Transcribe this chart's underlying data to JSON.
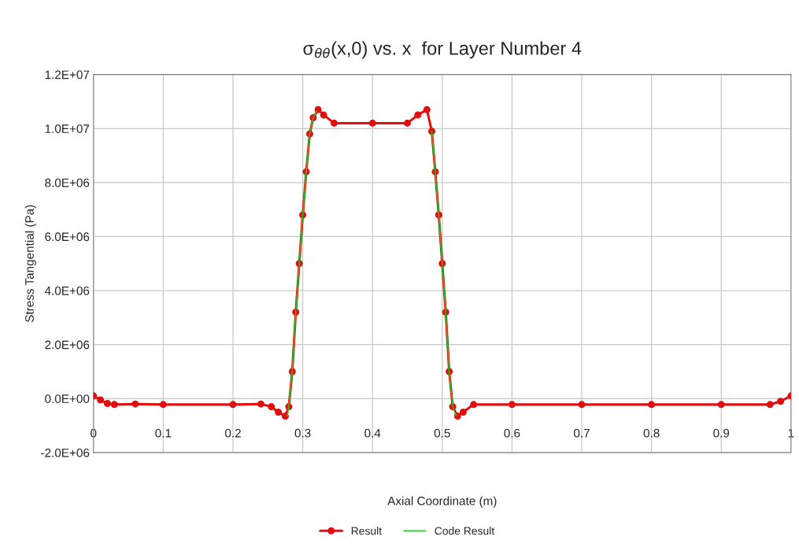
{
  "chart_data": {
    "type": "line",
    "title": "σ$_{θθ}$(x,0) vs. x  for Layer Number 4",
    "xlabel": "Axial Coordinate (m)",
    "ylabel": "Stress Tangential (Pa)",
    "xlim": [
      0,
      1
    ],
    "xticks": [
      0,
      0.1,
      0.2,
      0.3,
      0.4,
      0.5,
      0.6,
      0.7,
      0.8,
      0.9,
      1
    ],
    "ylim": [
      -2000000,
      12000000
    ],
    "yticks": [
      {
        "value": -2000000,
        "label": "-2.0E+06"
      },
      {
        "value": 0,
        "label": "0.0E+00"
      },
      {
        "value": 2000000,
        "label": "2.0E+06"
      },
      {
        "value": 4000000,
        "label": "4.0E+06"
      },
      {
        "value": 6000000,
        "label": "6.0E+06"
      },
      {
        "value": 8000000,
        "label": "8.0E+06"
      },
      {
        "value": 10000000,
        "label": "1.0E+07"
      },
      {
        "value": 12000000,
        "label": "1.2E+07"
      }
    ],
    "grid": true,
    "legend": "bottom",
    "series": [
      {
        "name": "Result",
        "color": "#e01010",
        "marker": "circle",
        "x": [
          0,
          0.01,
          0.02,
          0.03,
          0.06,
          0.1,
          0.2,
          0.24,
          0.255,
          0.265,
          0.275,
          0.28,
          0.285,
          0.29,
          0.295,
          0.3,
          0.305,
          0.31,
          0.315,
          0.322,
          0.33,
          0.345,
          0.4,
          0.45,
          0.465,
          0.478,
          0.485,
          0.49,
          0.495,
          0.5,
          0.505,
          0.51,
          0.515,
          0.522,
          0.53,
          0.545,
          0.6,
          0.7,
          0.8,
          0.9,
          0.97,
          0.985,
          1
        ],
        "values": [
          100000,
          -50000,
          -180000,
          -220000,
          -200000,
          -220000,
          -220000,
          -200000,
          -300000,
          -500000,
          -650000,
          -300000,
          1000000,
          3200000,
          5000000,
          6800000,
          8400000,
          9800000,
          10400000,
          10700000,
          10500000,
          10200000,
          10200000,
          10200000,
          10500000,
          10700000,
          9900000,
          8400000,
          6800000,
          5000000,
          3200000,
          1000000,
          -300000,
          -650000,
          -500000,
          -220000,
          -220000,
          -220000,
          -220000,
          -220000,
          -220000,
          -100000,
          100000
        ]
      },
      {
        "name": "Code Result",
        "color": "#22cc22",
        "marker": "none",
        "x": [
          0.278,
          0.28,
          0.285,
          0.29,
          0.295,
          0.3,
          0.305,
          0.31,
          0.315,
          0.32,
          0.48,
          0.485,
          0.49,
          0.495,
          0.5,
          0.505,
          0.51,
          0.515,
          0.52
        ],
        "values": [
          -650000,
          -300000,
          1000000,
          3200000,
          5000000,
          6800000,
          8400000,
          9800000,
          10400000,
          10650000,
          null,
          9900000,
          8400000,
          6800000,
          5000000,
          3200000,
          1000000,
          -300000,
          -650000
        ]
      }
    ]
  }
}
